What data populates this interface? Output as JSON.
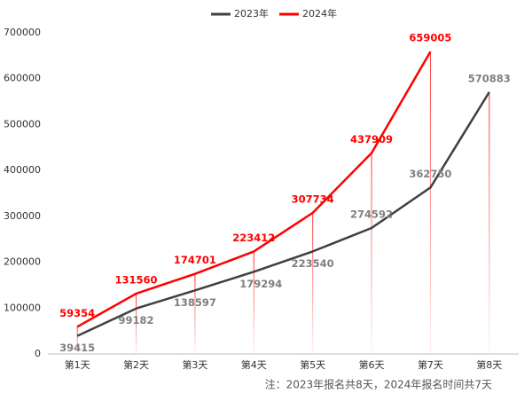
{
  "chart_data": {
    "type": "line",
    "categories": [
      "第1天",
      "第2天",
      "第3天",
      "第4天",
      "第5天",
      "第6天",
      "第7天",
      "第8天"
    ],
    "series": [
      {
        "name": "2023年",
        "color": "#404040",
        "label_color": "#7f7f7f",
        "values": [
          39415,
          99182,
          138597,
          179294,
          223540,
          274592,
          362750,
          570883
        ]
      },
      {
        "name": "2024年",
        "color": "#ff0000",
        "label_color": "#ff0000",
        "values": [
          59354,
          131560,
          174701,
          223412,
          307734,
          437909,
          659005,
          null
        ]
      }
    ],
    "ylim": [
      0,
      700000
    ],
    "yticks": [
      0,
      100000,
      200000,
      300000,
      400000,
      500000,
      600000,
      700000
    ],
    "grid": false,
    "legend": "top",
    "annotation": "注：2023年报名共8天，2024年报名时间共7天"
  }
}
